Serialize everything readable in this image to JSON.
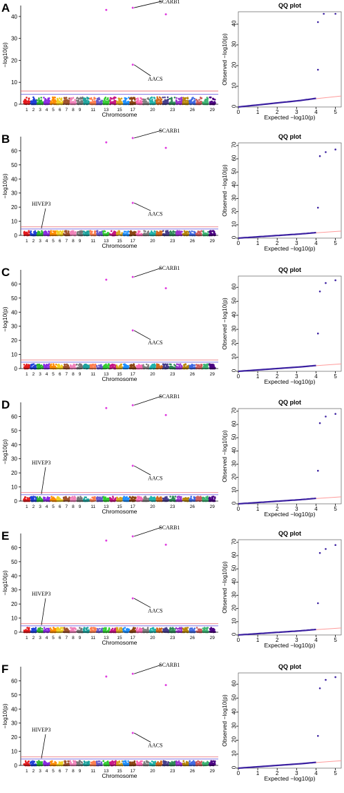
{
  "colors": {
    "chromosome_palette": [
      "#e41a1c",
      "#1f3fd8",
      "#2ab530",
      "#8a2be2",
      "#ff8c00",
      "#f0d020",
      "#a0522d",
      "#f081b9",
      "#777777",
      "#1fa39e",
      "#ff7f50",
      "#6a5acd",
      "#32cd32",
      "#c71585",
      "#daa520",
      "#1e90ff",
      "#8b4513",
      "#ff69b4",
      "#808080",
      "#20b2aa",
      "#d2691e",
      "#483d8b",
      "#2e8b57",
      "#9932cc",
      "#b8860b",
      "#4169e1",
      "#cd5c5c",
      "#3cb371",
      "#4b0082"
    ],
    "threshold_red": "#e8606a",
    "threshold_blue": "#6a5ee0",
    "highlight_point": "#e040e0",
    "qq_line": "#ff9a9a",
    "qq_points": "#3a1fa0"
  },
  "labels": {
    "manhattan_ylabel": "−log10(p)",
    "manhattan_xlabel": "Chromosome",
    "qq_title": "QQ plot",
    "qq_ylabel": "Observed −log10(p)",
    "qq_xlabel": "Expected −log10(p)"
  },
  "chart_data": [
    {
      "panel": "A",
      "type": "scatter",
      "subtype": "manhattan",
      "xlabel": "Chromosome",
      "ylabel": "−log10(p)",
      "ylim": [
        0,
        45
      ],
      "yticks": [
        0,
        10,
        20,
        30,
        40
      ],
      "chromosome_ticks": [
        "1",
        "2",
        "3",
        "4",
        "5",
        "6",
        "7",
        "8",
        "9",
        "11",
        "13",
        "15",
        "17",
        "20",
        "23",
        "26",
        "29"
      ],
      "thresholds": [
        4.5,
        6
      ],
      "peaks": [
        {
          "chromosome": "13",
          "y": 43
        },
        {
          "chromosome": "17",
          "y": 44
        },
        {
          "chromosome": "22",
          "y": 41
        },
        {
          "chromosome": "17",
          "y": 18
        }
      ],
      "annotations": [
        {
          "text": "SCARB1",
          "chromosome": "17",
          "y": 44,
          "label_y": 46
        },
        {
          "text": "AACS",
          "chromosome": "17",
          "y": 18,
          "label_y": 12
        }
      ]
    },
    {
      "panel": "A-QQ",
      "type": "scatter",
      "subtype": "qq",
      "title": "QQ plot",
      "xlabel": "Expected −log10(p)",
      "ylabel": "Observed −log10(p)",
      "xlim": [
        0,
        5.3
      ],
      "ylim": [
        0,
        46
      ],
      "xticks": [
        0,
        1,
        2,
        3,
        4,
        5
      ],
      "yticks": [
        0,
        10,
        20,
        30,
        40
      ],
      "outliers": [
        [
          4.1,
          18
        ],
        [
          4.1,
          41
        ],
        [
          4.4,
          45
        ],
        [
          5.0,
          45
        ]
      ]
    },
    {
      "panel": "B",
      "type": "scatter",
      "subtype": "manhattan",
      "xlabel": "Chromosome",
      "ylabel": "−log10(p)",
      "ylim": [
        0,
        70
      ],
      "yticks": [
        0,
        10,
        20,
        30,
        40,
        50,
        60
      ],
      "chromosome_ticks": [
        "1",
        "2",
        "3",
        "4",
        "5",
        "6",
        "7",
        "8",
        "9",
        "11",
        "13",
        "15",
        "17",
        "20",
        "23",
        "26",
        "29"
      ],
      "thresholds": [
        4.5,
        6
      ],
      "peaks": [
        {
          "chromosome": "13",
          "y": 66
        },
        {
          "chromosome": "17",
          "y": 69
        },
        {
          "chromosome": "22",
          "y": 62
        },
        {
          "chromosome": "17",
          "y": 23
        }
      ],
      "annotations": [
        {
          "text": "SCARB1",
          "chromosome": "17",
          "y": 69,
          "label_y": 73
        },
        {
          "text": "AACS",
          "chromosome": "17",
          "y": 23,
          "label_y": 16
        },
        {
          "text": "HIVEP3",
          "chromosome": "3",
          "y": 5,
          "label_y": 21
        }
      ]
    },
    {
      "panel": "B-QQ",
      "type": "scatter",
      "subtype": "qq",
      "title": "QQ plot",
      "xlabel": "Expected −log10(p)",
      "ylabel": "Observed −log10(p)",
      "xlim": [
        0,
        5.3
      ],
      "ylim": [
        0,
        72
      ],
      "xticks": [
        0,
        1,
        2,
        3,
        4,
        5
      ],
      "yticks": [
        0,
        10,
        20,
        30,
        40,
        50,
        60,
        70
      ],
      "outliers": [
        [
          4.1,
          23
        ],
        [
          4.2,
          62
        ],
        [
          4.5,
          65
        ],
        [
          5.0,
          67
        ]
      ]
    },
    {
      "panel": "C",
      "type": "scatter",
      "subtype": "manhattan",
      "xlabel": "Chromosome",
      "ylabel": "−log10(p)",
      "ylim": [
        0,
        70
      ],
      "yticks": [
        0,
        10,
        20,
        30,
        40,
        50,
        60
      ],
      "chromosome_ticks": [
        "1",
        "2",
        "3",
        "4",
        "5",
        "6",
        "7",
        "8",
        "9",
        "11",
        "13",
        "15",
        "17",
        "20",
        "23",
        "26",
        "29"
      ],
      "thresholds": [
        4.5,
        6
      ],
      "peaks": [
        {
          "chromosome": "13",
          "y": 63
        },
        {
          "chromosome": "17",
          "y": 65
        },
        {
          "chromosome": "22",
          "y": 57
        },
        {
          "chromosome": "17",
          "y": 27
        }
      ],
      "annotations": [
        {
          "text": "SCARB1",
          "chromosome": "17",
          "y": 65,
          "label_y": 70
        },
        {
          "text": "AACS",
          "chromosome": "17",
          "y": 27,
          "label_y": 19
        }
      ]
    },
    {
      "panel": "C-QQ",
      "type": "scatter",
      "subtype": "qq",
      "title": "QQ plot",
      "xlabel": "Expected −log10(p)",
      "ylabel": "Observed −log10(p)",
      "xlim": [
        0,
        5.3
      ],
      "ylim": [
        0,
        68
      ],
      "xticks": [
        0,
        1,
        2,
        3,
        4,
        5
      ],
      "yticks": [
        0,
        10,
        20,
        30,
        40,
        50,
        60
      ],
      "outliers": [
        [
          4.1,
          27
        ],
        [
          4.2,
          57
        ],
        [
          4.5,
          63
        ],
        [
          5.0,
          65
        ]
      ]
    },
    {
      "panel": "D",
      "type": "scatter",
      "subtype": "manhattan",
      "xlabel": "Chromosome",
      "ylabel": "−log10(p)",
      "ylim": [
        0,
        70
      ],
      "yticks": [
        0,
        10,
        20,
        30,
        40,
        50,
        60
      ],
      "chromosome_ticks": [
        "1",
        "2",
        "3",
        "4",
        "5",
        "6",
        "7",
        "8",
        "9",
        "11",
        "13",
        "15",
        "17",
        "20",
        "23",
        "26",
        "29"
      ],
      "thresholds": [
        4.5,
        6
      ],
      "peaks": [
        {
          "chromosome": "13",
          "y": 66
        },
        {
          "chromosome": "17",
          "y": 68
        },
        {
          "chromosome": "22",
          "y": 61
        },
        {
          "chromosome": "17",
          "y": 25
        }
      ],
      "annotations": [
        {
          "text": "SCARB1",
          "chromosome": "17",
          "y": 68,
          "label_y": 73
        },
        {
          "text": "AACS",
          "chromosome": "17",
          "y": 25,
          "label_y": 17
        },
        {
          "text": "HIVEP3",
          "chromosome": "3",
          "y": 5,
          "label_y": 26
        }
      ]
    },
    {
      "panel": "D-QQ",
      "type": "scatter",
      "subtype": "qq",
      "title": "QQ plot",
      "xlabel": "Expected −log10(p)",
      "ylabel": "Observed −log10(p)",
      "xlim": [
        0,
        5.3
      ],
      "ylim": [
        0,
        72
      ],
      "xticks": [
        0,
        1,
        2,
        3,
        4,
        5
      ],
      "yticks": [
        0,
        10,
        20,
        30,
        40,
        50,
        60,
        70
      ],
      "outliers": [
        [
          4.1,
          25
        ],
        [
          4.2,
          61
        ],
        [
          4.5,
          66
        ],
        [
          5.0,
          68
        ]
      ]
    },
    {
      "panel": "E",
      "type": "scatter",
      "subtype": "manhattan",
      "xlabel": "Chromosome",
      "ylabel": "−log10(p)",
      "ylim": [
        0,
        70
      ],
      "yticks": [
        0,
        10,
        20,
        30,
        40,
        50,
        60
      ],
      "chromosome_ticks": [
        "1",
        "2",
        "3",
        "4",
        "5",
        "6",
        "7",
        "8",
        "9",
        "11",
        "13",
        "15",
        "17",
        "20",
        "23",
        "26",
        "29"
      ],
      "thresholds": [
        4.5,
        6
      ],
      "peaks": [
        {
          "chromosome": "13",
          "y": 65
        },
        {
          "chromosome": "17",
          "y": 68
        },
        {
          "chromosome": "22",
          "y": 62
        },
        {
          "chromosome": "17",
          "y": 24
        }
      ],
      "annotations": [
        {
          "text": "SCARB1",
          "chromosome": "17",
          "y": 68,
          "label_y": 73
        },
        {
          "text": "AACS",
          "chromosome": "17",
          "y": 24,
          "label_y": 16
        },
        {
          "text": "HIVEP3",
          "chromosome": "3",
          "y": 5,
          "label_y": 26
        }
      ]
    },
    {
      "panel": "E-QQ",
      "type": "scatter",
      "subtype": "qq",
      "title": "QQ plot",
      "xlabel": "Expected −log10(p)",
      "ylabel": "Observed −log10(p)",
      "xlim": [
        0,
        5.3
      ],
      "ylim": [
        0,
        72
      ],
      "xticks": [
        0,
        1,
        2,
        3,
        4,
        5
      ],
      "yticks": [
        0,
        10,
        20,
        30,
        40,
        50,
        60,
        70
      ],
      "outliers": [
        [
          4.1,
          24
        ],
        [
          4.2,
          62
        ],
        [
          4.5,
          65
        ],
        [
          5.0,
          68
        ]
      ]
    },
    {
      "panel": "F",
      "type": "scatter",
      "subtype": "manhattan",
      "xlabel": "Chromosome",
      "ylabel": "−log10(p)",
      "ylim": [
        0,
        70
      ],
      "yticks": [
        0,
        10,
        20,
        30,
        40,
        50,
        60
      ],
      "chromosome_ticks": [
        "1",
        "2",
        "3",
        "4",
        "5",
        "6",
        "7",
        "8",
        "9",
        "11",
        "13",
        "15",
        "17",
        "20",
        "23",
        "26",
        "29"
      ],
      "thresholds": [
        4.5,
        6
      ],
      "peaks": [
        {
          "chromosome": "13",
          "y": 63
        },
        {
          "chromosome": "17",
          "y": 65
        },
        {
          "chromosome": "22",
          "y": 57
        },
        {
          "chromosome": "17",
          "y": 23
        }
      ],
      "annotations": [
        {
          "text": "SCARB1",
          "chromosome": "17",
          "y": 65,
          "label_y": 70
        },
        {
          "text": "AACS",
          "chromosome": "17",
          "y": 23,
          "label_y": 15
        },
        {
          "text": "HIVEP3",
          "chromosome": "3",
          "y": 5,
          "label_y": 24
        }
      ]
    },
    {
      "panel": "F-QQ",
      "type": "scatter",
      "subtype": "qq",
      "title": "QQ plot",
      "xlabel": "Expected −log10(p)",
      "ylabel": "Observed −log10(p)",
      "xlim": [
        0,
        5.3
      ],
      "ylim": [
        0,
        68
      ],
      "xticks": [
        0,
        1,
        2,
        3,
        4,
        5
      ],
      "yticks": [
        0,
        10,
        20,
        30,
        40,
        50,
        60
      ],
      "outliers": [
        [
          4.1,
          23
        ],
        [
          4.2,
          57
        ],
        [
          4.5,
          63
        ],
        [
          5.0,
          65
        ]
      ]
    }
  ]
}
